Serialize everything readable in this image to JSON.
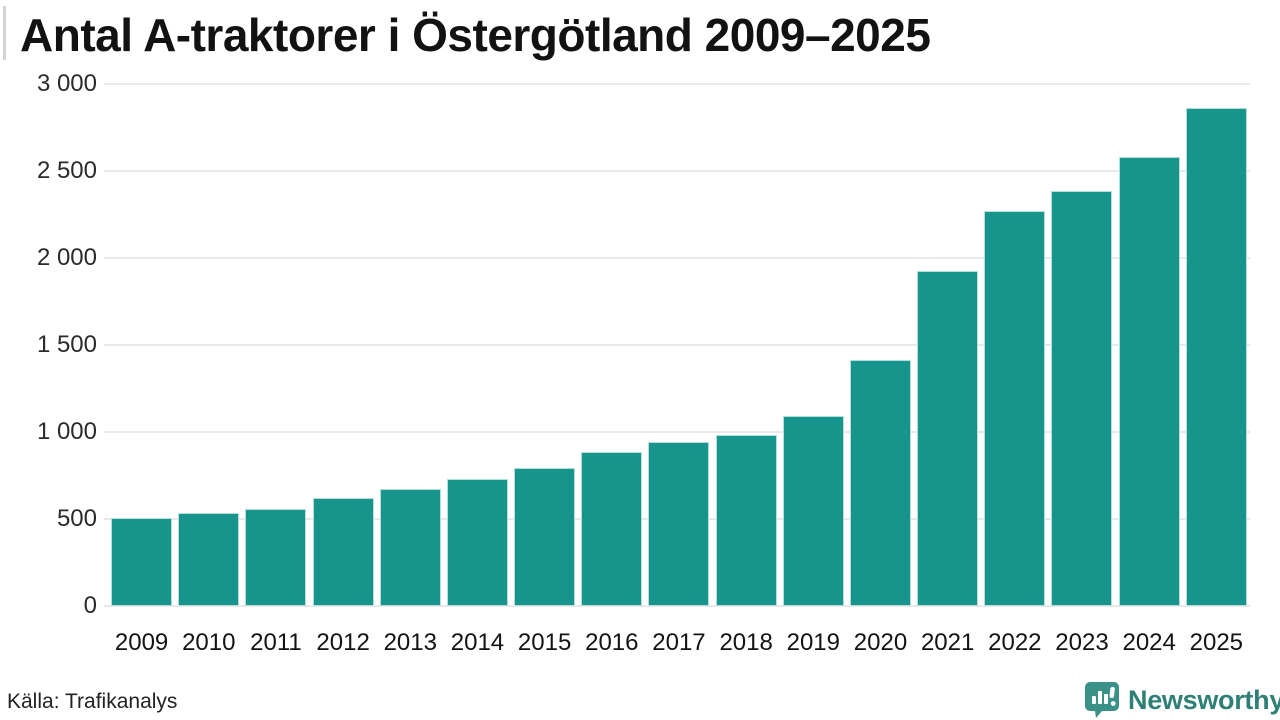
{
  "title": "Antal A-traktorer i Östergötland 2009–2025",
  "source": "Källa: Trafikanalys",
  "branding": {
    "name": "Newsworthy",
    "logo_icon": "newsworthy-speech-bubble-bar-chart-icon",
    "icon_color": "#3a9188",
    "text_color": "#2e8077"
  },
  "colors": {
    "bar": "#17948c",
    "gridline": "#e9e9ec",
    "title_text": "#121212",
    "tick_text": "#2b2b2b"
  },
  "chart_data": {
    "type": "bar",
    "title": "Antal A-traktorer i Östergötland 2009–2025",
    "xlabel": "",
    "ylabel": "",
    "categories": [
      "2009",
      "2010",
      "2011",
      "2012",
      "2013",
      "2014",
      "2015",
      "2016",
      "2017",
      "2018",
      "2019",
      "2020",
      "2021",
      "2022",
      "2023",
      "2024",
      "2025"
    ],
    "values": [
      505,
      535,
      555,
      620,
      670,
      730,
      795,
      885,
      945,
      985,
      1095,
      1415,
      1925,
      2270,
      2385,
      2580,
      2865
    ],
    "ylim": [
      0,
      3000
    ],
    "yticks": [
      0,
      500,
      1000,
      1500,
      2000,
      2500,
      3000
    ],
    "ytick_labels": [
      "0",
      "500",
      "1 000",
      "1 500",
      "2 000",
      "2 500",
      "3 000"
    ],
    "grid": true,
    "legend": false,
    "bar_color": "#17948c",
    "source": "Källa: Trafikanalys"
  }
}
